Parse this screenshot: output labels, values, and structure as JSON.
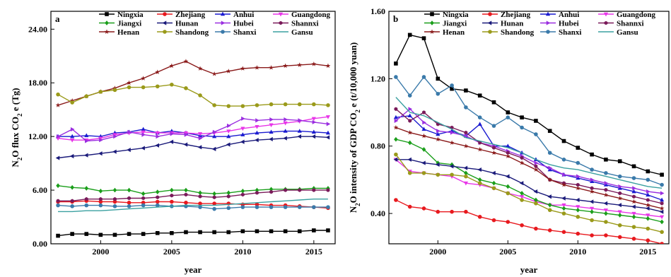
{
  "chart_data": [
    {
      "type": "line",
      "panel_label": "a",
      "xlabel": "year",
      "ylabel": "N2O flux CO2 e (Tg)",
      "ylabel_parts": [
        "N",
        "2",
        "O flux CO",
        "2",
        " e (Tg)"
      ],
      "xlim": [
        1996.5,
        2016.5
      ],
      "ylim": [
        0,
        26
      ],
      "xticks": [
        2000,
        2005,
        2010,
        2015
      ],
      "yticks": [
        0,
        6,
        12,
        18,
        24
      ],
      "ytick_labels": [
        "0.00",
        "6.00",
        "12.00",
        "18.00",
        "24.00"
      ],
      "grid": false,
      "legend": "top",
      "x": [
        1997,
        1998,
        1999,
        2000,
        2001,
        2002,
        2003,
        2004,
        2005,
        2006,
        2007,
        2008,
        2009,
        2010,
        2011,
        2012,
        2013,
        2014,
        2015,
        2016
      ],
      "series": [
        {
          "name": "Ningxia",
          "color": "#000000",
          "marker": "square",
          "values": [
            0.9,
            1.1,
            1.1,
            1.0,
            1.0,
            1.1,
            1.1,
            1.2,
            1.2,
            1.3,
            1.3,
            1.3,
            1.3,
            1.4,
            1.4,
            1.4,
            1.4,
            1.4,
            1.5,
            1.5
          ]
        },
        {
          "name": "Zhejiang",
          "color": "#e8191e",
          "marker": "circle",
          "values": [
            4.7,
            4.7,
            4.8,
            4.7,
            4.7,
            4.6,
            4.6,
            4.7,
            4.7,
            4.6,
            4.5,
            4.5,
            4.5,
            4.4,
            4.4,
            4.3,
            4.3,
            4.2,
            4.1,
            4.0
          ]
        },
        {
          "name": "Anhui",
          "color": "#1a1ad0",
          "marker": "triangle-up",
          "values": [
            12.0,
            12.0,
            12.1,
            12.0,
            12.4,
            12.5,
            12.8,
            12.4,
            12.6,
            12.4,
            12.1,
            12.0,
            12.0,
            12.2,
            12.4,
            12.5,
            12.6,
            12.6,
            12.5,
            12.4
          ]
        },
        {
          "name": "Guangdong",
          "color": "#e835e8",
          "marker": "triangle-down",
          "values": [
            11.8,
            11.6,
            11.6,
            11.8,
            12.2,
            12.4,
            12.5,
            12.4,
            12.4,
            12.4,
            12.3,
            12.4,
            12.6,
            12.9,
            13.1,
            13.3,
            13.5,
            13.7,
            14.0,
            14.2
          ]
        },
        {
          "name": "Jiangxi",
          "color": "#1a9e1a",
          "marker": "diamond",
          "values": [
            6.5,
            6.3,
            6.2,
            5.9,
            6.0,
            6.0,
            5.6,
            5.8,
            6.0,
            6.0,
            5.7,
            5.6,
            5.7,
            5.9,
            6.0,
            6.1,
            6.1,
            6.1,
            6.2,
            6.2
          ]
        },
        {
          "name": "Hunan",
          "color": "#1a1a7a",
          "marker": "triangle-left",
          "values": [
            9.6,
            9.8,
            9.9,
            10.1,
            10.3,
            10.5,
            10.7,
            11.0,
            11.4,
            11.1,
            10.8,
            10.6,
            11.1,
            11.4,
            11.6,
            11.7,
            11.8,
            12.0,
            12.0,
            11.9
          ]
        },
        {
          "name": "Hubei",
          "color": "#9a2ee0",
          "marker": "triangle-right",
          "values": [
            12.0,
            12.8,
            11.5,
            11.6,
            12.0,
            12.5,
            12.2,
            12.0,
            12.3,
            12.2,
            11.8,
            12.5,
            13.2,
            14.0,
            13.8,
            13.9,
            13.9,
            13.8,
            13.6,
            13.4
          ]
        },
        {
          "name": "Shannxi",
          "color": "#7a1a5a",
          "marker": "hexagon",
          "values": [
            4.8,
            4.8,
            5.0,
            5.0,
            5.0,
            5.1,
            5.1,
            5.2,
            5.4,
            5.5,
            5.3,
            5.2,
            5.3,
            5.5,
            5.7,
            5.8,
            6.0,
            6.0,
            6.0,
            6.0
          ]
        },
        {
          "name": "Henan",
          "color": "#8a1a1a",
          "marker": "star",
          "values": [
            15.5,
            16.0,
            16.5,
            17.0,
            17.4,
            18.0,
            18.5,
            19.2,
            19.9,
            20.4,
            19.6,
            19.0,
            19.3,
            19.6,
            19.7,
            19.7,
            19.9,
            20.0,
            20.1,
            19.9
          ]
        },
        {
          "name": "Shandong",
          "color": "#9a9a1a",
          "marker": "circle",
          "values": [
            16.7,
            15.8,
            16.5,
            17.0,
            17.2,
            17.5,
            17.5,
            17.6,
            17.8,
            17.4,
            16.6,
            15.5,
            15.4,
            15.4,
            15.5,
            15.6,
            15.6,
            15.6,
            15.6,
            15.5
          ]
        },
        {
          "name": "Shanxi",
          "color": "#3a7aaa",
          "marker": "circle",
          "values": [
            4.3,
            4.2,
            4.3,
            4.3,
            4.2,
            4.2,
            4.3,
            4.3,
            4.2,
            4.2,
            4.1,
            3.9,
            4.0,
            4.1,
            4.1,
            4.1,
            4.1,
            4.1,
            4.1,
            4.1
          ]
        },
        {
          "name": "Gansu",
          "color": "#3aa0a0",
          "marker": "none",
          "values": [
            3.6,
            3.6,
            3.7,
            3.7,
            3.8,
            3.9,
            4.0,
            4.1,
            4.2,
            4.3,
            4.3,
            4.3,
            4.4,
            4.5,
            4.6,
            4.7,
            4.8,
            4.9,
            5.0,
            5.0
          ]
        }
      ]
    },
    {
      "type": "line",
      "panel_label": "b",
      "xlabel": "year",
      "ylabel": "N2O intensity of GDP CO2 e (t/10,000 yuan)",
      "ylabel_parts": [
        "N",
        "2",
        "O intensity of GDP CO",
        "2",
        " e (t/10,000 yuan)"
      ],
      "xlim": [
        1996.5,
        2016.5
      ],
      "ylim": [
        0.22,
        1.6
      ],
      "xticks": [
        2000,
        2005,
        2010,
        2015
      ],
      "yticks": [
        0.4,
        0.8,
        1.2,
        1.6
      ],
      "ytick_labels": [
        "0.40",
        "0.80",
        "1.20",
        "1.60"
      ],
      "grid": false,
      "legend": "top",
      "x": [
        1997,
        1998,
        1999,
        2000,
        2001,
        2002,
        2003,
        2004,
        2005,
        2006,
        2007,
        2008,
        2009,
        2010,
        2011,
        2012,
        2013,
        2014,
        2015,
        2016
      ],
      "series": [
        {
          "name": "Ningxia",
          "color": "#000000",
          "marker": "square",
          "values": [
            1.29,
            1.46,
            1.44,
            1.2,
            1.14,
            1.13,
            1.1,
            1.06,
            1.0,
            0.97,
            0.95,
            0.89,
            0.83,
            0.79,
            0.75,
            0.72,
            0.71,
            0.68,
            0.65,
            0.63
          ]
        },
        {
          "name": "Zhejiang",
          "color": "#e8191e",
          "marker": "circle",
          "values": [
            0.48,
            0.44,
            0.43,
            0.41,
            0.41,
            0.41,
            0.38,
            0.36,
            0.35,
            0.33,
            0.31,
            0.3,
            0.29,
            0.28,
            0.27,
            0.27,
            0.26,
            0.25,
            0.24,
            0.22
          ]
        },
        {
          "name": "Anhui",
          "color": "#1a1ad0",
          "marker": "triangle-up",
          "values": [
            0.97,
            0.98,
            0.9,
            0.87,
            0.89,
            0.86,
            0.93,
            0.8,
            0.8,
            0.76,
            0.72,
            0.66,
            0.63,
            0.61,
            0.59,
            0.57,
            0.55,
            0.53,
            0.51,
            0.48
          ]
        },
        {
          "name": "Guangdong",
          "color": "#e835e8",
          "marker": "triangle-down",
          "values": [
            0.72,
            0.65,
            0.64,
            0.63,
            0.62,
            0.58,
            0.57,
            0.55,
            0.52,
            0.5,
            0.47,
            0.45,
            0.45,
            0.44,
            0.43,
            0.42,
            0.41,
            0.4,
            0.39,
            0.38
          ]
        },
        {
          "name": "Jiangxi",
          "color": "#1a9e1a",
          "marker": "diamond",
          "values": [
            0.84,
            0.82,
            0.78,
            0.7,
            0.69,
            0.64,
            0.6,
            0.58,
            0.56,
            0.52,
            0.48,
            0.45,
            0.43,
            0.42,
            0.41,
            0.4,
            0.39,
            0.38,
            0.37,
            0.35
          ]
        },
        {
          "name": "Hunan",
          "color": "#1a1a7a",
          "marker": "triangle-left",
          "values": [
            0.72,
            0.72,
            0.7,
            0.69,
            0.68,
            0.67,
            0.66,
            0.64,
            0.62,
            0.58,
            0.53,
            0.5,
            0.49,
            0.48,
            0.47,
            0.46,
            0.45,
            0.44,
            0.43,
            0.41
          ]
        },
        {
          "name": "Hubei",
          "color": "#9a2ee0",
          "marker": "triangle-right",
          "values": [
            0.95,
            1.02,
            0.94,
            0.89,
            0.88,
            0.86,
            0.82,
            0.8,
            0.77,
            0.74,
            0.7,
            0.67,
            0.63,
            0.62,
            0.6,
            0.58,
            0.56,
            0.55,
            0.53,
            0.52
          ]
        },
        {
          "name": "Shannxi",
          "color": "#7a1a5a",
          "marker": "hexagon",
          "values": [
            1.02,
            0.95,
            1.0,
            0.93,
            0.91,
            0.88,
            0.82,
            0.79,
            0.76,
            0.73,
            0.68,
            0.6,
            0.58,
            0.57,
            0.55,
            0.54,
            0.52,
            0.5,
            0.48,
            0.46
          ]
        },
        {
          "name": "Henan",
          "color": "#8a1a1a",
          "marker": "star",
          "values": [
            0.91,
            0.88,
            0.86,
            0.84,
            0.82,
            0.8,
            0.78,
            0.76,
            0.74,
            0.7,
            0.66,
            0.6,
            0.57,
            0.55,
            0.53,
            0.51,
            0.49,
            0.47,
            0.45,
            0.43
          ]
        },
        {
          "name": "Shandong",
          "color": "#9a9a1a",
          "marker": "circle",
          "values": [
            0.75,
            0.64,
            0.64,
            0.63,
            0.63,
            0.62,
            0.58,
            0.55,
            0.52,
            0.48,
            0.46,
            0.42,
            0.4,
            0.38,
            0.36,
            0.35,
            0.33,
            0.32,
            0.31,
            0.29
          ]
        },
        {
          "name": "Shanxi",
          "color": "#3a7aaa",
          "marker": "circle",
          "values": [
            1.21,
            1.1,
            1.21,
            1.11,
            1.16,
            1.03,
            0.97,
            0.92,
            0.97,
            0.91,
            0.87,
            0.76,
            0.72,
            0.7,
            0.66,
            0.64,
            0.62,
            0.61,
            0.6,
            0.57
          ]
        },
        {
          "name": "Gansu",
          "color": "#3aa0a0",
          "marker": "none",
          "values": [
            1.09,
            1.0,
            0.98,
            0.94,
            0.9,
            0.85,
            0.83,
            0.81,
            0.79,
            0.76,
            0.72,
            0.69,
            0.67,
            0.66,
            0.64,
            0.62,
            0.6,
            0.58,
            0.56,
            0.55
          ]
        }
      ]
    }
  ]
}
